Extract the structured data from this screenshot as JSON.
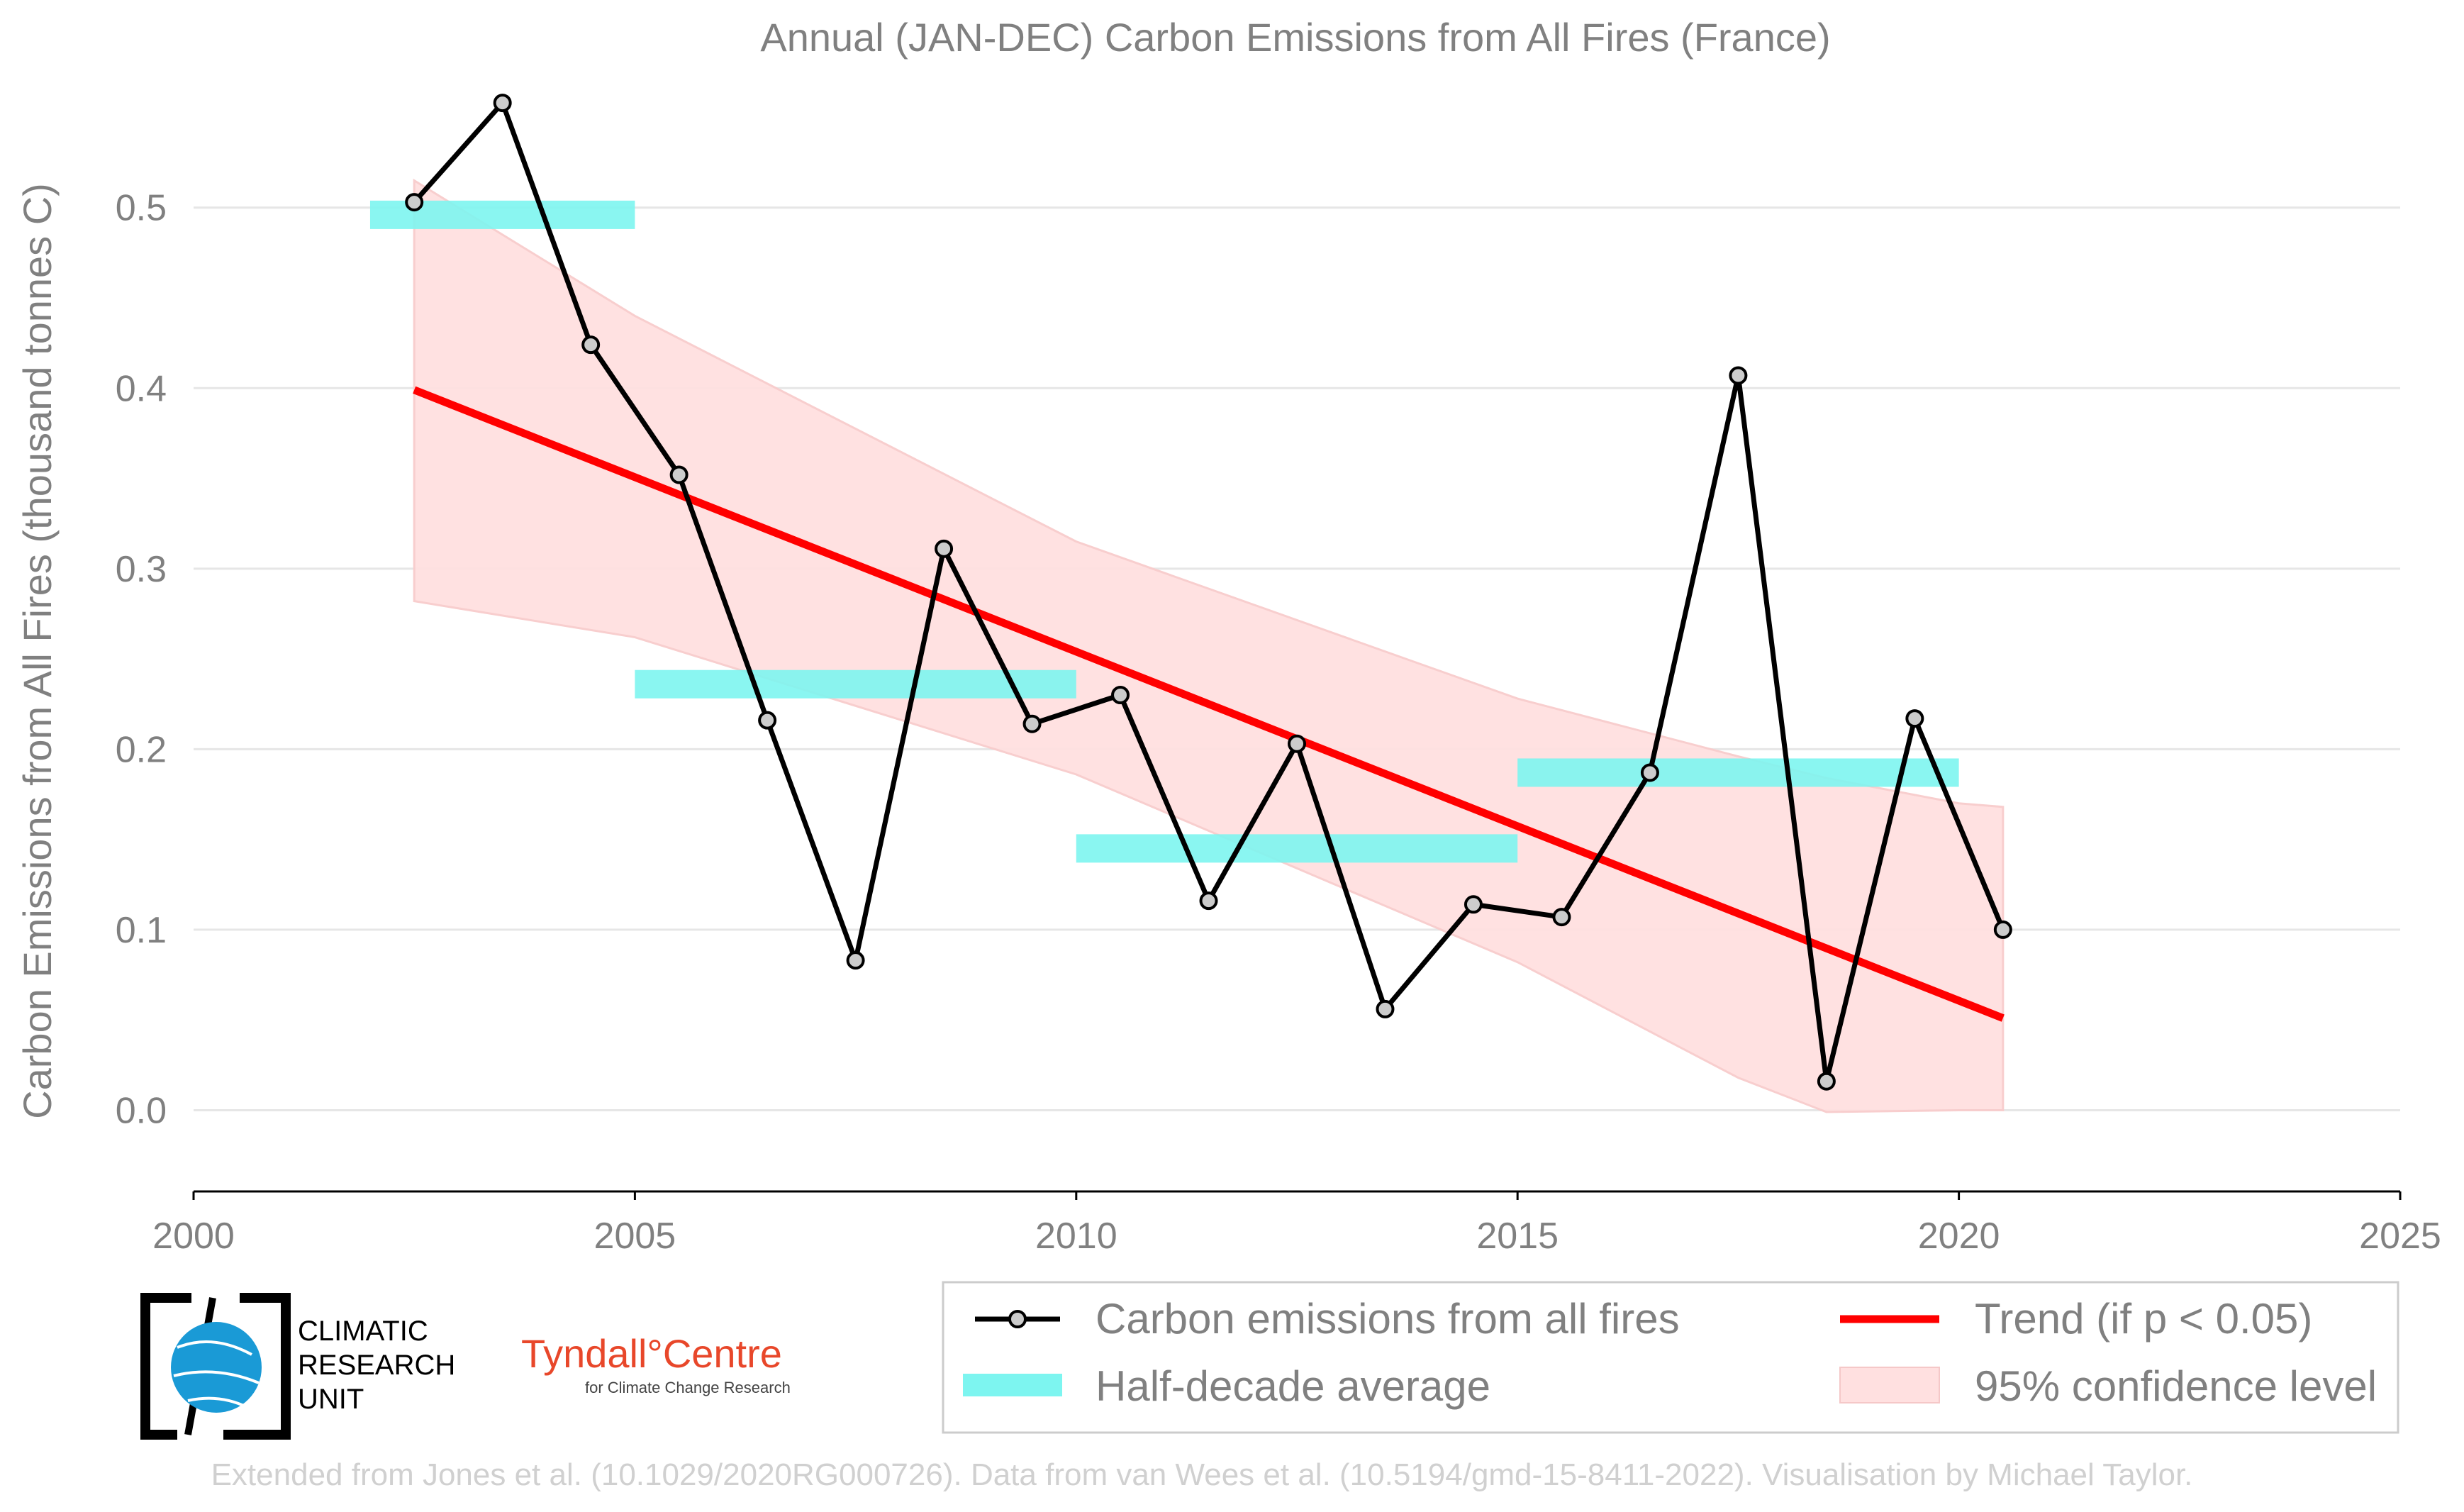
{
  "chart_data": {
    "type": "line",
    "title": "Annual (JAN-DEC) Carbon Emissions from All Fires (France)",
    "ylabel": "Carbon Emissions from All Fires (thousand tonnes C)",
    "xlim": [
      2000,
      2025
    ],
    "ylim": [
      -0.045,
      0.56
    ],
    "x_ticks": [
      2000,
      2005,
      2010,
      2015,
      2020,
      2025
    ],
    "x_tick_labels": [
      "2000",
      "2005",
      "2010",
      "2015",
      "2020",
      "2025"
    ],
    "y_ticks": [
      0.0,
      0.1,
      0.2,
      0.3,
      0.4,
      0.5
    ],
    "y_tick_labels": [
      "0.0",
      "0.1",
      "0.2",
      "0.3",
      "0.4",
      "0.5"
    ],
    "grid": "horizontal",
    "series": [
      {
        "name": "Carbon emissions from all fires",
        "type": "line",
        "color": "#000000",
        "x": [
          2002.5,
          2003.5,
          2004.5,
          2005.5,
          2006.5,
          2007.5,
          2008.5,
          2009.5,
          2010.5,
          2011.5,
          2012.5,
          2013.5,
          2014.5,
          2015.5,
          2016.5,
          2017.5,
          2018.5,
          2019.5,
          2020.5
        ],
        "y": [
          0.503,
          0.558,
          0.424,
          0.352,
          0.216,
          0.083,
          0.311,
          0.214,
          0.23,
          0.116,
          0.203,
          0.056,
          0.114,
          0.107,
          0.187,
          0.407,
          0.016,
          0.217,
          0.1
        ]
      },
      {
        "name": "Half-decade average",
        "type": "step",
        "color": "#7df5f0",
        "segments": [
          {
            "x0": 2002,
            "x1": 2005,
            "y": 0.496
          },
          {
            "x0": 2005,
            "x1": 2010,
            "y": 0.236
          },
          {
            "x0": 2010,
            "x1": 2015,
            "y": 0.145
          },
          {
            "x0": 2015,
            "x1": 2020,
            "y": 0.187
          }
        ]
      },
      {
        "name": "Trend (if p < 0.05)",
        "type": "line",
        "color": "#ff0000",
        "x": [
          2002.5,
          2020.5
        ],
        "y": [
          0.399,
          0.051
        ]
      },
      {
        "name": "95% confidence level",
        "type": "area",
        "color": "#ffe0e0",
        "x": [
          2002.5,
          2005,
          2010,
          2015,
          2017.5,
          2018.5,
          2020,
          2020.5
        ],
        "upper": [
          0.515,
          0.44,
          0.315,
          0.228,
          0.196,
          0.184,
          0.17,
          0.168
        ],
        "lower": [
          0.282,
          0.262,
          0.186,
          0.082,
          0.018,
          -0.001,
          0.0,
          0.0
        ]
      }
    ],
    "legend": {
      "placement": "bottom-right",
      "columns": 2
    }
  },
  "logos": {
    "cru_lines": [
      "CLIMATIC",
      "RESEARCH",
      "UNIT"
    ],
    "tyndall_main": "Tyndall°Centre",
    "tyndall_sub": "for Climate Change Research"
  },
  "footer": "Extended from Jones et al. (10.1029/2020RG000726). Data from van Wees et al. (10.5194/gmd-15-8411-2022). Visualisation by Michael Taylor."
}
